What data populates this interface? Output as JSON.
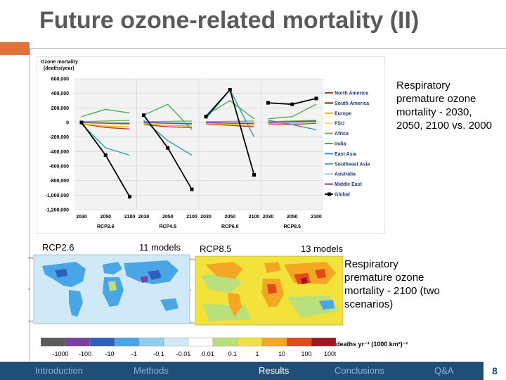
{
  "slide": {
    "title": "Future ozone-related mortality (II)",
    "page_number": "8"
  },
  "top_chart_caption": "Respiratory premature ozone mortality - 2030, 2050, 2100 vs. 2000",
  "maps": {
    "left_label": "RCP2.6",
    "left_models": "11 models",
    "right_label": "RCP8.5",
    "right_models": "13 models",
    "caption": "Respiratory premature ozone mortality - 2100 (two scenarios)",
    "colorbar_title": "deaths yr⁻¹ (1000 km²)⁻¹",
    "colorbar_ticks": [
      "-1000",
      "-100",
      "-10",
      "-1",
      "-0.1",
      "-0.01",
      "0.01",
      "0.1",
      "1",
      "10",
      "100",
      "1000"
    ],
    "colorbar_colors": [
      "#5a5a5a",
      "#7b3fa0",
      "#2e5fbf",
      "#49a6e6",
      "#8fd0f0",
      "#cfe9f7",
      "#ffffff",
      "#b9e07a",
      "#f2e23a",
      "#f5a623",
      "#e24a1a",
      "#a0141e"
    ]
  },
  "footer": {
    "nav": [
      "Introduction",
      "Methods",
      "Results",
      "Conclusions",
      "Q&A"
    ],
    "active": "Results"
  },
  "chart_data": {
    "type": "line",
    "title": "Ozone mortality (deaths/year)",
    "ylim": [
      -1200000,
      600000
    ],
    "yticks": [
      "600,000",
      "400,000",
      "200,000",
      "0",
      "-200,000",
      "-400,000",
      "-600,000",
      "-800,000",
      "-1,000,000",
      "-1,200,000"
    ],
    "ytick_values": [
      600000,
      400000,
      200000,
      0,
      -200000,
      -400000,
      -600000,
      -800000,
      -1000000,
      -1200000
    ],
    "x_years": [
      "2030",
      "2050",
      "2100"
    ],
    "groups": [
      "RCP2.6",
      "RCP4.5",
      "RCP6.0",
      "RCP8.5"
    ],
    "grid": true,
    "legend_placement": "right",
    "series": [
      {
        "name": "North America",
        "color": "#c0392b",
        "values": [
          [
            -20000,
            -70000,
            -90000
          ],
          [
            -30000,
            -60000,
            -70000
          ],
          [
            -20000,
            -40000,
            -60000
          ],
          [
            -20000,
            -30000,
            -10000
          ]
        ]
      },
      {
        "name": "South America",
        "color": "#8b1a1a",
        "values": [
          [
            -5000,
            -10000,
            -15000
          ],
          [
            -5000,
            -8000,
            -10000
          ],
          [
            -3000,
            -6000,
            -8000
          ],
          [
            0,
            5000,
            10000
          ]
        ]
      },
      {
        "name": "Europe",
        "color": "#f5b700",
        "values": [
          [
            -20000,
            -50000,
            -60000
          ],
          [
            -20000,
            -40000,
            -50000
          ],
          [
            -10000,
            -30000,
            -40000
          ],
          [
            -10000,
            -20000,
            0
          ]
        ]
      },
      {
        "name": "FSU",
        "color": "#f0e060",
        "values": [
          [
            -5000,
            -20000,
            -25000
          ],
          [
            -5000,
            -15000,
            -20000
          ],
          [
            -5000,
            -10000,
            -15000
          ],
          [
            0,
            0,
            5000
          ]
        ]
      },
      {
        "name": "Africa",
        "color": "#7ab648",
        "values": [
          [
            10000,
            20000,
            30000
          ],
          [
            10000,
            15000,
            20000
          ],
          [
            10000,
            15000,
            20000
          ],
          [
            10000,
            20000,
            30000
          ]
        ]
      },
      {
        "name": "India",
        "color": "#4caf50",
        "values": [
          [
            80000,
            180000,
            130000
          ],
          [
            100000,
            250000,
            -100000
          ],
          [
            100000,
            300000,
            50000
          ],
          [
            50000,
            80000,
            250000
          ]
        ]
      },
      {
        "name": "East Asia",
        "color": "#1fa3b5",
        "values": [
          [
            -20000,
            -350000,
            -450000
          ],
          [
            30000,
            -250000,
            -450000
          ],
          [
            50000,
            450000,
            -200000
          ],
          [
            30000,
            -30000,
            -100000
          ]
        ]
      },
      {
        "name": "Southeast Asia",
        "color": "#5b9bd5",
        "values": [
          [
            0,
            -10000,
            -20000
          ],
          [
            0,
            -10000,
            -20000
          ],
          [
            0,
            -10000,
            -10000
          ],
          [
            0,
            10000,
            20000
          ]
        ]
      },
      {
        "name": "Australia",
        "color": "#a9c7e8",
        "values": [
          [
            0,
            -2000,
            -3000
          ],
          [
            0,
            -2000,
            -3000
          ],
          [
            0,
            -1000,
            -2000
          ],
          [
            0,
            0,
            1000
          ]
        ]
      },
      {
        "name": "Middle East",
        "color": "#7f3f98",
        "values": [
          [
            0,
            -10000,
            -15000
          ],
          [
            0,
            -10000,
            -20000
          ],
          [
            0,
            -10000,
            -15000
          ],
          [
            0,
            10000,
            20000
          ]
        ]
      },
      {
        "name": "Global",
        "color": "#000000",
        "values": [
          [
            0,
            -450000,
            -1020000
          ],
          [
            100000,
            -350000,
            -920000
          ],
          [
            80000,
            450000,
            -720000
          ],
          [
            270000,
            250000,
            330000
          ]
        ]
      }
    ]
  }
}
